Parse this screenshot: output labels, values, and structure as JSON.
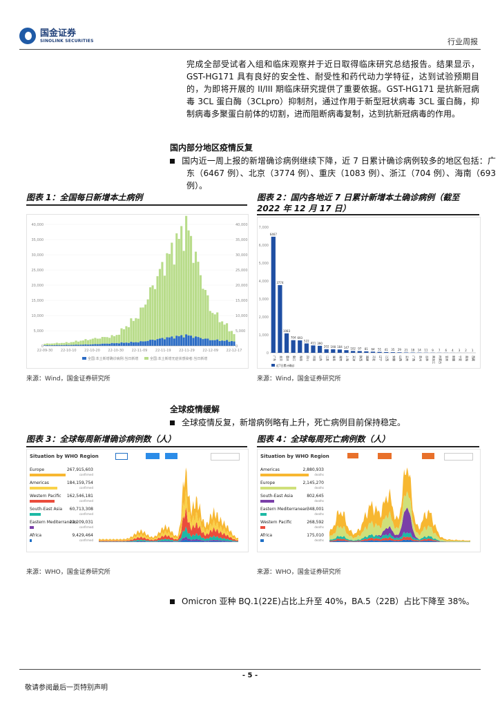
{
  "header": {
    "logo_cn": "国金证券",
    "logo_en": "SINOLINK SECURITIES",
    "report_type": "行业周报"
  },
  "intro_paragraph": "完成全部受试者入组和临床观察并于近日取得临床研究总结报告。结果显示，GST-HG171 具有良好的安全性、耐受性和药代动力学特征，达到试验预期目的，为即将开展的 II/III 期临床研究提供了重要依据。GST-HG171 是抗新冠病毒 3CL 蛋白酶（3CLpro）抑制剂，通过作用于新型冠状病毒 3CL 蛋白酶，抑制病毒多聚蛋白前体的切割，进而阻断病毒复制，达到抗新冠病毒的作用。",
  "section1": {
    "title": "国内部分地区疫情反复",
    "bullet": "国内近一周上报的新增确诊病例继续下降，近 7 日累计确诊病例较多的地区包括：广东（6467 例）、北京（3774 例）、重庆（1083 例）、浙江（704 例）、海南（693 例）。"
  },
  "figure1": {
    "title": "图表 1：全国每日新增本土病例",
    "source": "来源：Wind，国金证券研究所",
    "left_axis_ticks": [
      "0",
      "5,000",
      "10,000",
      "15,000",
      "20,000",
      "25,000",
      "30,000",
      "35,000",
      "40,000"
    ],
    "right_axis_ticks": [
      "0",
      "5,000",
      "10,000",
      "15,000",
      "20,000",
      "25,000",
      "30,000",
      "35,000",
      "40,000"
    ],
    "x_ticks": [
      "22-09-30",
      "22-10-10",
      "22-10-20",
      "22-10-30",
      "22-11-09",
      "22-11-19",
      "22-11-29",
      "22-12-09",
      "22-12-17"
    ],
    "legend": [
      "全国:本土新增确诊病例:当日新增",
      "全国:本土新增无症状感染者:当日新增"
    ]
  },
  "figure2": {
    "title": "图表 2：国内各地近 7 日累计新增本土确诊病例（截至 2022 年 12 月 17 日）",
    "source": "来源：Wind，国金证券研究所",
    "legend": "近7日累计确诊"
  },
  "section2": {
    "title": "全球疫情缓解",
    "bullet": "全球疫情反复，新增病例略有上升，死亡病例目前保持稳定。"
  },
  "figure3": {
    "title": "图表 3：全球每周新增确诊病例数（人）",
    "source": "来源：WHO，国金证券研究所",
    "panel_title": "Situation by WHO Region",
    "sub_label": "confirmed",
    "regions": [
      {
        "name": "Europe",
        "value": "267,915,603",
        "color": "#f7b731"
      },
      {
        "name": "Americas",
        "value": "184,159,754",
        "color": "#f9d24a"
      },
      {
        "name": "Western Pacific",
        "value": "162,546,181",
        "color": "#ea4c3c"
      },
      {
        "name": "South-East Asia",
        "value": "60,713,308",
        "color": "#1db9a5"
      },
      {
        "name": "Eastern Mediterranean",
        "value": "23,209,031",
        "color": "#7a3fa8"
      },
      {
        "name": "Africa",
        "value": "9,429,464",
        "color": "#1f6fc5"
      }
    ]
  },
  "figure4": {
    "title": "图表 4：全球每周死亡病例数（人）",
    "source": "来源：WHO，国金证券研究所",
    "panel_title": "Situation by WHO Region",
    "sub_label": "deaths",
    "regions": [
      {
        "name": "Americas",
        "value": "2,880,933",
        "color": "#f7b731"
      },
      {
        "name": "Europe",
        "value": "2,145,270",
        "color": "#cfe07a"
      },
      {
        "name": "South-East Asia",
        "value": "802,645",
        "color": "#7a3fa8"
      },
      {
        "name": "Eastern Mediterranean",
        "value": "348,001",
        "color": "#1db9a5"
      },
      {
        "name": "Western Pacific",
        "value": "268,592",
        "color": "#ea4c3c"
      },
      {
        "name": "Africa",
        "value": "175,010",
        "color": "#1f6fc5"
      }
    ]
  },
  "bullet3": "Omicron 亚种 BQ.1(22E)占比上升至 40%，BA.5（22B）占比下降至 38%。",
  "footer": {
    "page_number": "- 5 -",
    "disclaimer": "敬请参阅最后一页特别声明"
  },
  "chart_data": [
    {
      "type": "area",
      "title": "全国每日新增本土病例",
      "x": [
        "22-09-30",
        "22-10-10",
        "22-10-20",
        "22-10-30",
        "22-11-09",
        "22-11-19",
        "22-11-29",
        "22-12-09",
        "22-12-17"
      ],
      "series": [
        {
          "name": "全国:本土新增确诊病例:当日新增",
          "color": "#2b6cc4",
          "values": [
            200,
            300,
            500,
            900,
            1300,
            2500,
            3500,
            2000,
            1500
          ]
        },
        {
          "name": "全国:本土新增无症状感染者:当日新增",
          "color": "#b8dc8a",
          "values": [
            500,
            800,
            1800,
            2400,
            9000,
            24000,
            36000,
            10000,
            2500
          ]
        }
      ],
      "ylim": [
        0,
        40000
      ]
    },
    {
      "type": "bar",
      "title": "国内各地近 7 日累计新增本土确诊病例（截至 2022 年 12 月 17 日）",
      "categories": [
        "广东",
        "北京",
        "重庆",
        "浙江",
        "海南",
        "四川",
        "河南",
        "山东",
        "江苏",
        "湖北",
        "湖南",
        "上海",
        "天津",
        "陕西",
        "福建",
        "河北",
        "辽宁",
        "江西",
        "安徽",
        "山西",
        "云南",
        "广西",
        "贵州",
        "吉林",
        "黑龙江",
        "内蒙古",
        "甘肃",
        "新疆",
        "宁夏",
        "青海",
        "西藏"
      ],
      "values": [
        6467,
        3774,
        1083,
        704,
        693,
        522,
        411,
        390,
        202,
        198,
        184,
        147,
        102,
        97,
        81,
        64,
        51,
        41,
        35,
        29,
        21,
        18,
        14,
        11,
        9,
        7,
        6,
        4,
        3,
        2,
        1
      ],
      "ylim": [
        0,
        7000
      ],
      "legend": "近7日累计确诊"
    }
  ]
}
